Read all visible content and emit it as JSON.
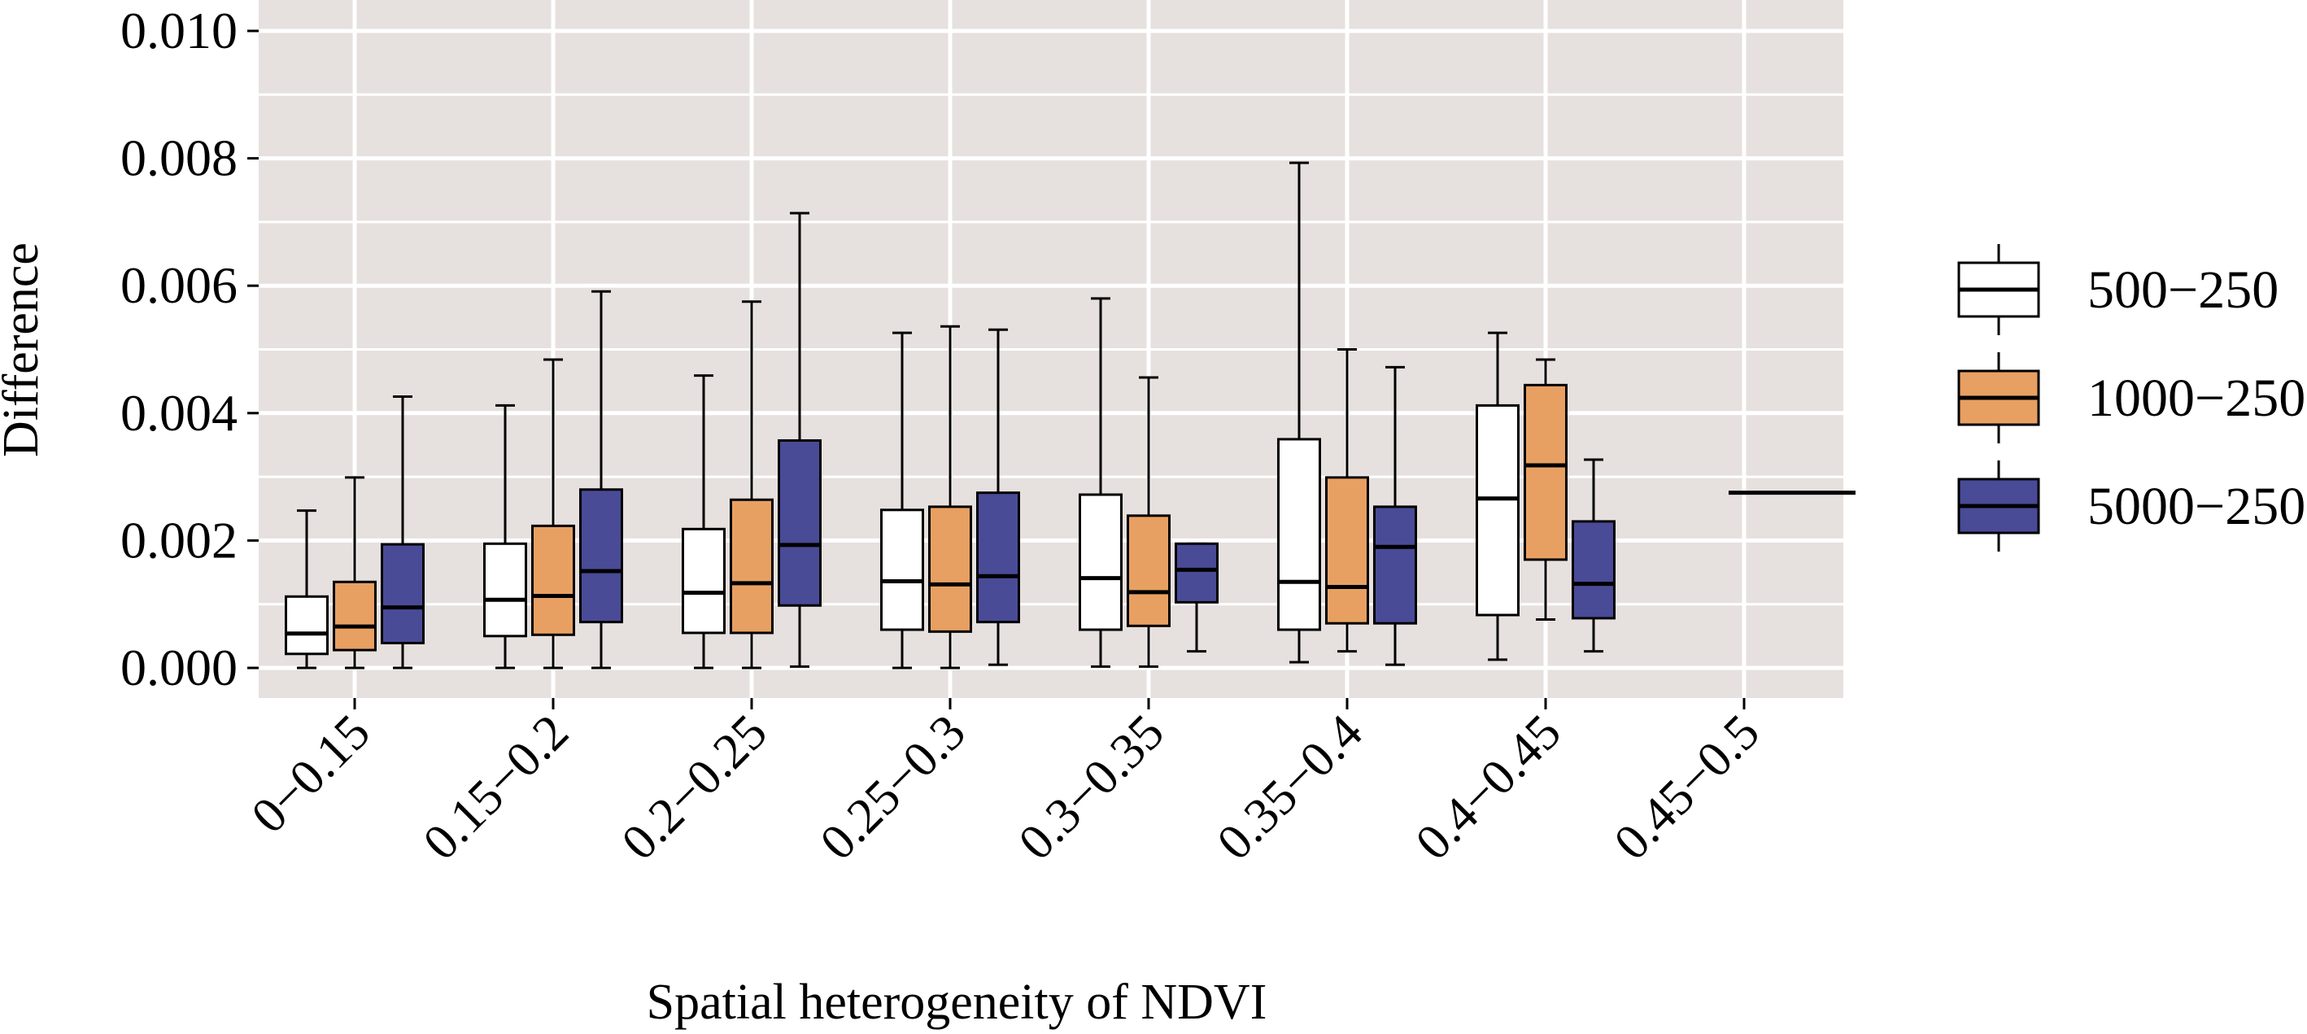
{
  "chart_data": {
    "type": "boxplot",
    "xlabel": "Spatial heterogeneity of NDVI",
    "ylabel": "Difference",
    "ylim": [
      -0.00055,
      0.0104
    ],
    "yticks": [
      0.0,
      0.002,
      0.004,
      0.006,
      0.008,
      0.01
    ],
    "ytick_labels": [
      "0.000",
      "0.002",
      "0.004",
      "0.006",
      "0.008",
      "0.010"
    ],
    "grid": true,
    "legend_position": "right",
    "categories": [
      "0−0.15",
      "0.15−0.2",
      "0.2−0.25",
      "0.25−0.3",
      "0.3−0.35",
      "0.35−0.4",
      "0.4−0.45",
      "0.45−0.5"
    ],
    "series": [
      {
        "name": "500−250",
        "color": "#ffffff",
        "boxes": [
          {
            "min": 0.0,
            "q1": 0.00022,
            "median": 0.00054,
            "q3": 0.00112,
            "max": 0.00247
          },
          {
            "min": 0.0,
            "q1": 0.0005,
            "median": 0.00107,
            "q3": 0.00195,
            "max": 0.00412
          },
          {
            "min": 0.0,
            "q1": 0.00055,
            "median": 0.00118,
            "q3": 0.00218,
            "max": 0.00459
          },
          {
            "min": 0.0,
            "q1": 0.0006,
            "median": 0.00136,
            "q3": 0.00248,
            "max": 0.00526
          },
          {
            "min": 2e-05,
            "q1": 0.0006,
            "median": 0.00141,
            "q3": 0.00272,
            "max": 0.0058
          },
          {
            "min": 9e-05,
            "q1": 0.0006,
            "median": 0.00135,
            "q3": 0.00359,
            "max": 0.00793
          },
          {
            "min": 0.00013,
            "q1": 0.00083,
            "median": 0.00266,
            "q3": 0.00412,
            "max": 0.00526
          },
          null
        ]
      },
      {
        "name": "1000−250",
        "color": "#e8a062",
        "boxes": [
          {
            "min": 0.0,
            "q1": 0.00028,
            "median": 0.00065,
            "q3": 0.00135,
            "max": 0.00299
          },
          {
            "min": 0.0,
            "q1": 0.00052,
            "median": 0.00113,
            "q3": 0.00223,
            "max": 0.00484
          },
          {
            "min": 0.0,
            "q1": 0.00055,
            "median": 0.00133,
            "q3": 0.00264,
            "max": 0.00575
          },
          {
            "min": 0.0,
            "q1": 0.00057,
            "median": 0.00131,
            "q3": 0.00253,
            "max": 0.00536
          },
          {
            "min": 2e-05,
            "q1": 0.00066,
            "median": 0.00119,
            "q3": 0.00239,
            "max": 0.00456
          },
          {
            "min": 0.00026,
            "q1": 0.0007,
            "median": 0.00127,
            "q3": 0.00299,
            "max": 0.005
          },
          {
            "min": 0.00076,
            "q1": 0.0017,
            "median": 0.00318,
            "q3": 0.00444,
            "max": 0.00484
          },
          null
        ]
      },
      {
        "name": "5000−250",
        "color": "#494b97",
        "boxes": [
          {
            "min": 0.0,
            "q1": 0.00039,
            "median": 0.00095,
            "q3": 0.00194,
            "max": 0.00426
          },
          {
            "min": 0.0,
            "q1": 0.00072,
            "median": 0.00152,
            "q3": 0.0028,
            "max": 0.00591
          },
          {
            "min": 2e-05,
            "q1": 0.00098,
            "median": 0.00193,
            "q3": 0.00357,
            "max": 0.00714
          },
          {
            "min": 5e-05,
            "q1": 0.00072,
            "median": 0.00144,
            "q3": 0.00275,
            "max": 0.00531
          },
          {
            "min": 0.00026,
            "q1": 0.00103,
            "median": 0.00154,
            "q3": 0.00195,
            "max": 0.00195
          },
          {
            "min": 5e-05,
            "q1": 0.0007,
            "median": 0.0019,
            "q3": 0.00253,
            "max": 0.00472
          },
          {
            "min": 0.00026,
            "q1": 0.00078,
            "median": 0.00132,
            "q3": 0.0023,
            "max": 0.00327
          },
          {
            "min": 0.00275,
            "q1": 0.00275,
            "median": 0.00275,
            "q3": 0.00275,
            "max": 0.00275
          }
        ]
      }
    ]
  },
  "colors": {
    "panel_background": "#e6e0de",
    "grid": "#ffffff",
    "box_outline": "#000000"
  }
}
